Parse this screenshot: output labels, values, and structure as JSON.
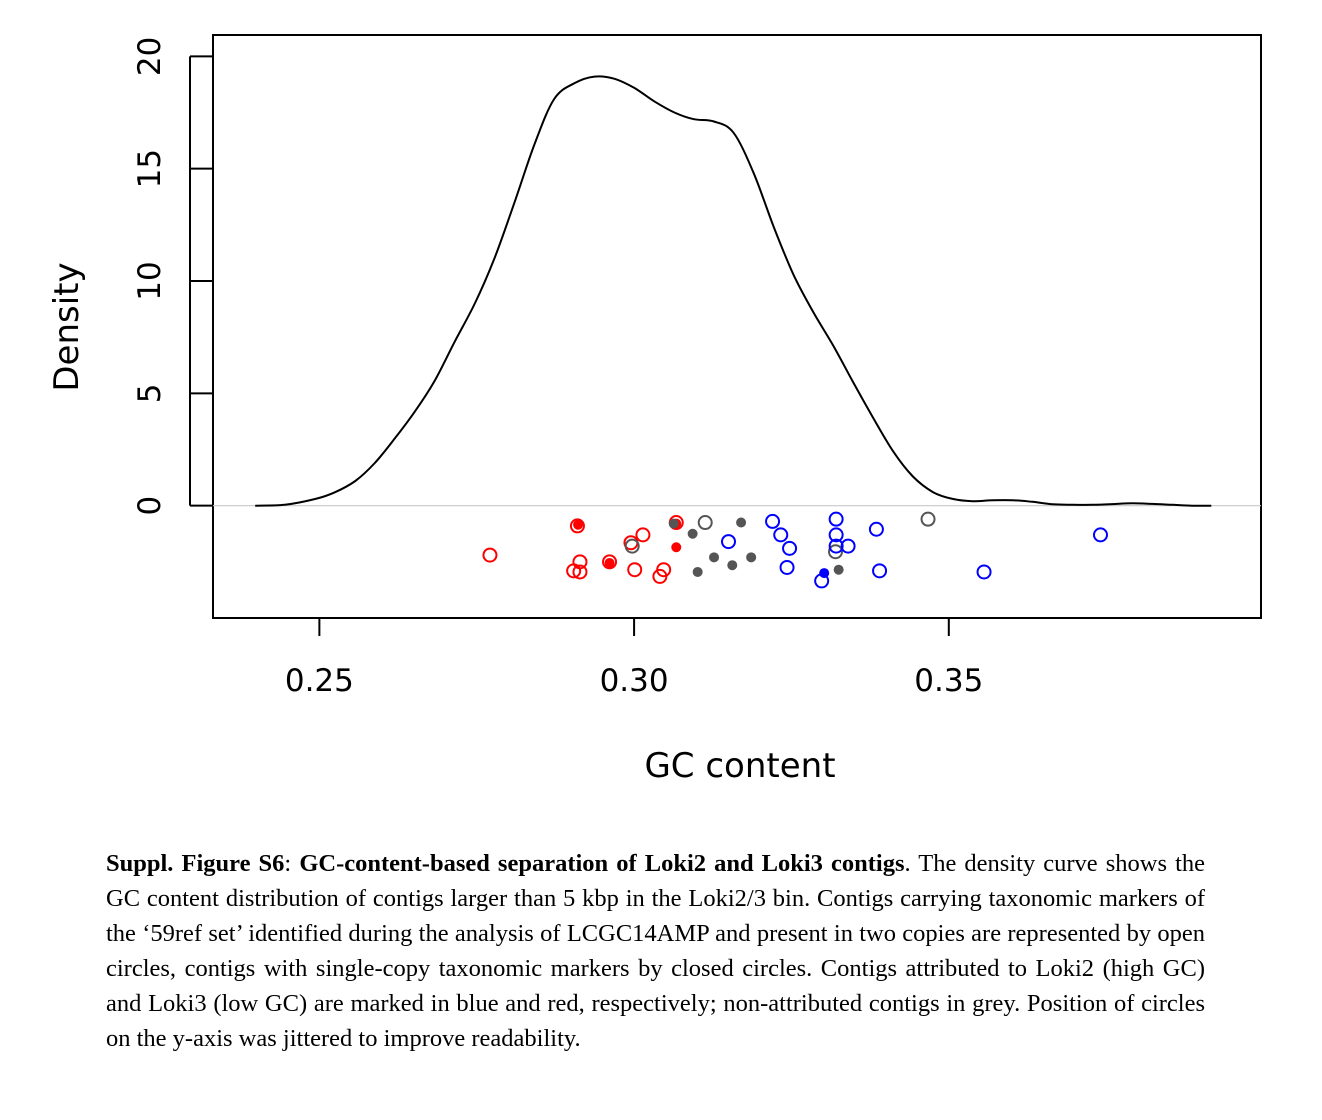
{
  "chart_data": {
    "type": "line+scatter",
    "title": "",
    "xlabel": "GC content",
    "ylabel": "Density",
    "xlim": [
      0.2331,
      0.3996
    ],
    "ylim": [
      -5.0,
      20.95
    ],
    "xticks": [
      0.25,
      0.3,
      0.35
    ],
    "xtick_labels": [
      "0.25",
      "0.30",
      "0.35"
    ],
    "yticks": [
      0,
      5,
      10,
      15,
      20
    ],
    "ytick_labels": [
      "0",
      "5",
      "10",
      "15",
      "20"
    ],
    "zero_line": true,
    "grid": false,
    "legend": "none",
    "density_curve": {
      "x": [
        0.2398,
        0.2445,
        0.2494,
        0.2525,
        0.2557,
        0.2588,
        0.262,
        0.2652,
        0.2684,
        0.2715,
        0.2747,
        0.2778,
        0.281,
        0.2842,
        0.2873,
        0.2905,
        0.2937,
        0.2969,
        0.3,
        0.3032,
        0.3064,
        0.3095,
        0.3127,
        0.3158,
        0.319,
        0.3222,
        0.3253,
        0.3285,
        0.3317,
        0.3348,
        0.338,
        0.3412,
        0.3443,
        0.3475,
        0.3506,
        0.3538,
        0.357,
        0.3602,
        0.3633,
        0.3665,
        0.3697,
        0.3728,
        0.376,
        0.3792,
        0.3823,
        0.3855,
        0.3887,
        0.3917
      ],
      "y": [
        0.0,
        0.04,
        0.3,
        0.6,
        1.1,
        1.9,
        3.0,
        4.2,
        5.6,
        7.3,
        9.0,
        11.0,
        13.5,
        16.1,
        18.1,
        18.8,
        19.1,
        19.0,
        18.6,
        18.0,
        17.5,
        17.2,
        17.1,
        16.6,
        14.8,
        12.4,
        10.3,
        8.6,
        7.1,
        5.5,
        3.9,
        2.4,
        1.3,
        0.6,
        0.3,
        0.2,
        0.24,
        0.24,
        0.17,
        0.06,
        0.04,
        0.04,
        0.07,
        0.11,
        0.08,
        0.04,
        0.0,
        0.0
      ]
    },
    "series": [
      {
        "name": "",
        "color": "#ff0000",
        "marker": "open",
        "x": [
          0.2771,
          0.291,
          0.2914,
          0.2914,
          0.2904,
          0.2961,
          0.2995,
          0.3014,
          0.3001,
          0.3047,
          0.3041,
          0.3067
        ],
        "y": [
          -2.2,
          -0.9,
          -2.5,
          -2.95,
          -2.9,
          -2.5,
          -1.65,
          -1.3,
          -2.85,
          -2.85,
          -3.15,
          -0.75
        ]
      },
      {
        "name": "",
        "color": "#ff0000",
        "marker": "filled",
        "x": [
          0.2911,
          0.2961,
          0.3067,
          0.3067
        ],
        "y": [
          -0.85,
          -2.55,
          -0.8,
          -1.85
        ]
      },
      {
        "name": "",
        "color": "#555555",
        "marker": "open",
        "x": [
          0.2997,
          0.3113,
          0.332,
          0.3467
        ],
        "y": [
          -1.8,
          -0.75,
          -2.05,
          -0.6
        ]
      },
      {
        "name": "",
        "color": "#555555",
        "marker": "filled",
        "x": [
          0.3063,
          0.3093,
          0.3101,
          0.3127,
          0.3156,
          0.317,
          0.3186,
          0.3325
        ],
        "y": [
          -0.8,
          -1.25,
          -2.95,
          -2.3,
          -2.65,
          -0.75,
          -2.3,
          -2.85
        ]
      },
      {
        "name": "",
        "color": "#0000ff",
        "marker": "open",
        "x": [
          0.315,
          0.322,
          0.3233,
          0.3243,
          0.3247,
          0.3298,
          0.3321,
          0.3321,
          0.3321,
          0.334,
          0.3385,
          0.339,
          0.3556,
          0.3741
        ],
        "y": [
          -1.6,
          -0.7,
          -1.3,
          -2.75,
          -1.9,
          -3.35,
          -0.6,
          -1.3,
          -1.8,
          -1.8,
          -1.05,
          -2.9,
          -2.95,
          -1.3
        ]
      },
      {
        "name": "",
        "color": "#0000ff",
        "marker": "filled",
        "x": [
          0.3302
        ],
        "y": [
          -3.0
        ]
      }
    ]
  },
  "caption": {
    "label": "Suppl. Figure S6",
    "separator": ": ",
    "title": "GC-content-based separation of Loki2 and Loki3 contigs",
    "body": ". The density curve shows the GC content distribution of contigs larger than 5 kbp in the Loki2/3 bin. Contigs carrying taxonomic markers of the ‘59ref set’ identified during the analysis of LCGC14AMP and present in two copies are represented by open circles, contigs with single-copy taxonomic markers by closed circles. Contigs attributed to Loki2 (high GC) and Loki3 (low GC) are marked in blue and red, respectively; non-attributed contigs in grey. Position of circles on the y-axis was jittered to improve readability."
  }
}
